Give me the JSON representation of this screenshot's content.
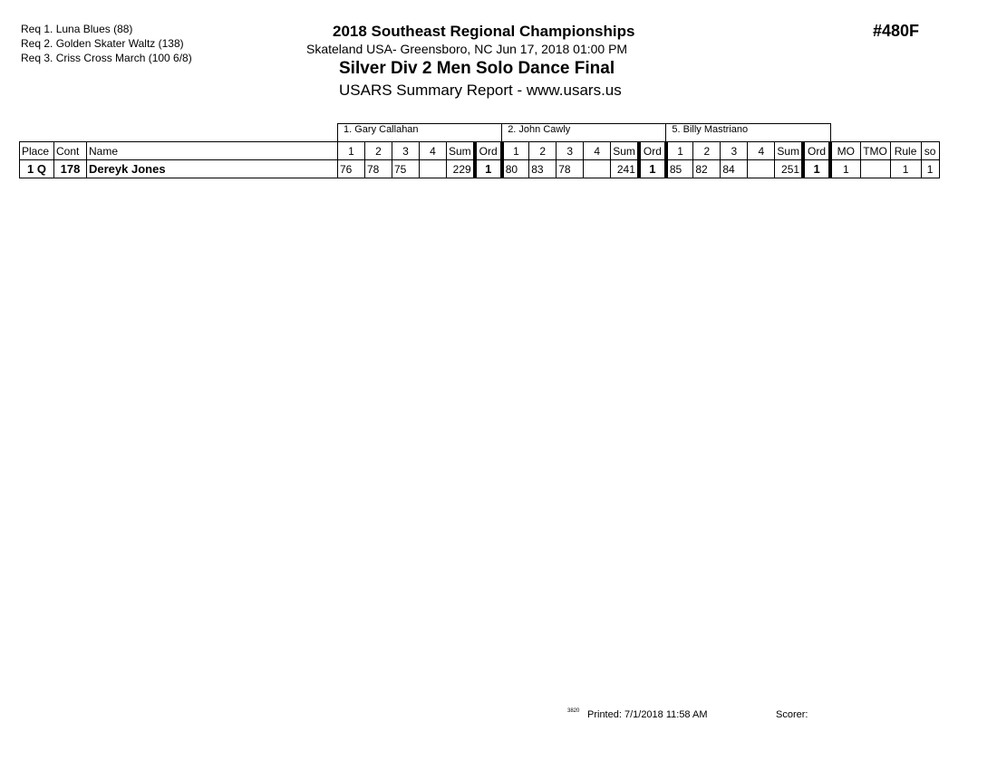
{
  "requirements": [
    "Req  1.  Luna Blues (88)",
    "Req  2.  Golden Skater Waltz (138)",
    "Req  3.  Criss Cross March (100 6/8)"
  ],
  "header": {
    "title": "2018 Southeast Regional Championships",
    "venue": "Skateland USA- Greensboro, NC  Jun 17, 2018  01:00 PM",
    "event": "Silver Div 2  Men Solo Dance Final",
    "report": "USARS Summary Report - www.usars.us",
    "event_number": "#480F"
  },
  "judges": [
    "1.  Gary Callahan",
    "2.  John Cawly",
    "5.  Billy Mastriano"
  ],
  "columns": {
    "place": "Place",
    "cont": "Cont",
    "name": "Name",
    "j": [
      "1",
      "2",
      "3",
      "4",
      "Sum",
      "Ord"
    ],
    "mo": "MO",
    "tmo": "TMO",
    "rule": "Rule",
    "so": "so"
  },
  "rows": [
    {
      "place": "1 Q",
      "cont": "178",
      "name": "Dereyk Jones",
      "scores": [
        [
          "76",
          "78",
          "75",
          "",
          "229",
          "1"
        ],
        [
          "80",
          "83",
          "78",
          "",
          "241",
          "1"
        ],
        [
          "85",
          "82",
          "84",
          "",
          "251",
          "1"
        ]
      ],
      "mo": "1",
      "tmo": "",
      "rule": "1",
      "so": "1"
    }
  ],
  "footer": {
    "code": "3820",
    "printed": "Printed:  7/1/2018  11:58 AM",
    "scorer": "Scorer:"
  }
}
